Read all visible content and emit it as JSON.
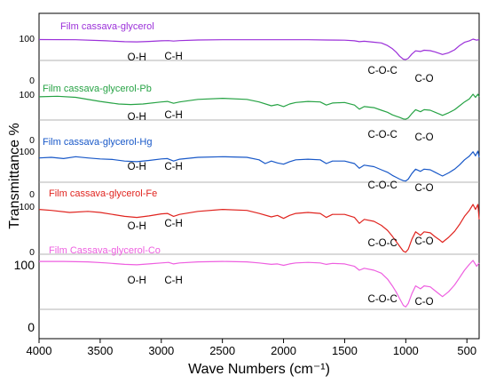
{
  "chart_data": {
    "type": "line",
    "title": "",
    "xlabel": "Wave Numbers (cm⁻¹)",
    "ylabel": "Transmittance %",
    "xlim": [
      4000,
      400
    ],
    "x_ticks": [
      4000,
      3500,
      3000,
      2500,
      2000,
      1500,
      1000,
      500
    ],
    "grid": false,
    "legend": "none",
    "series": [
      {
        "name": "Film cassava-glycerol",
        "color": "#9b30d9",
        "ref_top": "100",
        "ref_bottom": "0",
        "annotations": [
          {
            "text": "O-H",
            "x": 3200
          },
          {
            "text": "C-H",
            "x": 2900
          },
          {
            "text": "C-O-C",
            "x": 1190
          },
          {
            "text": "C-O",
            "x": 850
          }
        ],
        "points": [
          [
            4000,
            98
          ],
          [
            3700,
            97
          ],
          [
            3450,
            92
          ],
          [
            3300,
            88
          ],
          [
            3200,
            87
          ],
          [
            3100,
            89
          ],
          [
            3000,
            92
          ],
          [
            2940,
            93
          ],
          [
            2900,
            91
          ],
          [
            2850,
            93
          ],
          [
            2700,
            96
          ],
          [
            2500,
            97
          ],
          [
            2300,
            97
          ],
          [
            2100,
            97
          ],
          [
            2000,
            97
          ],
          [
            1800,
            97
          ],
          [
            1650,
            96
          ],
          [
            1500,
            95
          ],
          [
            1420,
            92
          ],
          [
            1380,
            88
          ],
          [
            1340,
            90
          ],
          [
            1250,
            85
          ],
          [
            1200,
            82
          ],
          [
            1150,
            70
          ],
          [
            1110,
            55
          ],
          [
            1080,
            40
          ],
          [
            1050,
            20
          ],
          [
            1020,
            6
          ],
          [
            1000,
            4
          ],
          [
            980,
            10
          ],
          [
            950,
            30
          ],
          [
            920,
            45
          ],
          [
            880,
            42
          ],
          [
            850,
            48
          ],
          [
            800,
            46
          ],
          [
            760,
            40
          ],
          [
            720,
            32
          ],
          [
            700,
            28
          ],
          [
            650,
            36
          ],
          [
            600,
            50
          ],
          [
            560,
            70
          ],
          [
            520,
            85
          ],
          [
            480,
            92
          ],
          [
            450,
            100
          ],
          [
            420,
            95
          ],
          [
            400,
            98
          ]
        ]
      },
      {
        "name": "Film cassava-glycerol-Pb",
        "color": "#27a345",
        "ref_top": "100",
        "ref_bottom": "0",
        "annotations": [
          {
            "text": "O-H",
            "x": 3200
          },
          {
            "text": "C-H",
            "x": 2900
          },
          {
            "text": "C-O-C",
            "x": 1190
          },
          {
            "text": "C-O",
            "x": 850
          }
        ],
        "points": [
          [
            4000,
            90
          ],
          [
            3850,
            92
          ],
          [
            3700,
            88
          ],
          [
            3500,
            72
          ],
          [
            3350,
            62
          ],
          [
            3250,
            60
          ],
          [
            3150,
            62
          ],
          [
            3000,
            70
          ],
          [
            2950,
            72
          ],
          [
            2900,
            65
          ],
          [
            2850,
            70
          ],
          [
            2700,
            80
          ],
          [
            2500,
            84
          ],
          [
            2300,
            80
          ],
          [
            2200,
            70
          ],
          [
            2100,
            55
          ],
          [
            2050,
            60
          ],
          [
            2000,
            52
          ],
          [
            1950,
            62
          ],
          [
            1900,
            68
          ],
          [
            1800,
            72
          ],
          [
            1700,
            70
          ],
          [
            1650,
            58
          ],
          [
            1600,
            66
          ],
          [
            1500,
            68
          ],
          [
            1420,
            58
          ],
          [
            1380,
            42
          ],
          [
            1340,
            52
          ],
          [
            1260,
            48
          ],
          [
            1200,
            38
          ],
          [
            1150,
            30
          ],
          [
            1110,
            20
          ],
          [
            1080,
            15
          ],
          [
            1050,
            10
          ],
          [
            1020,
            4
          ],
          [
            1000,
            3
          ],
          [
            980,
            8
          ],
          [
            950,
            25
          ],
          [
            920,
            40
          ],
          [
            880,
            32
          ],
          [
            850,
            40
          ],
          [
            800,
            38
          ],
          [
            760,
            30
          ],
          [
            720,
            22
          ],
          [
            700,
            18
          ],
          [
            650,
            28
          ],
          [
            600,
            40
          ],
          [
            560,
            55
          ],
          [
            520,
            70
          ],
          [
            480,
            82
          ],
          [
            450,
            100
          ],
          [
            430,
            88
          ],
          [
            410,
            100
          ],
          [
            400,
            90
          ]
        ]
      },
      {
        "name": "Film cassava-glycerol-Hg",
        "color": "#1858c8",
        "ref_top": "100",
        "ref_bottom": "0",
        "annotations": [
          {
            "text": "O-H",
            "x": 3200
          },
          {
            "text": "C-H",
            "x": 2900
          },
          {
            "text": "C-O-C",
            "x": 1190
          },
          {
            "text": "C-O",
            "x": 850
          }
        ],
        "points": [
          [
            4000,
            78
          ],
          [
            3900,
            80
          ],
          [
            3800,
            76
          ],
          [
            3700,
            82
          ],
          [
            3600,
            78
          ],
          [
            3500,
            75
          ],
          [
            3400,
            73
          ],
          [
            3300,
            68
          ],
          [
            3200,
            66
          ],
          [
            3100,
            70
          ],
          [
            3000,
            75
          ],
          [
            2950,
            76
          ],
          [
            2900,
            68
          ],
          [
            2850,
            74
          ],
          [
            2700,
            80
          ],
          [
            2500,
            82
          ],
          [
            2300,
            80
          ],
          [
            2200,
            72
          ],
          [
            2150,
            60
          ],
          [
            2100,
            68
          ],
          [
            2050,
            62
          ],
          [
            2000,
            58
          ],
          [
            1950,
            66
          ],
          [
            1900,
            72
          ],
          [
            1800,
            74
          ],
          [
            1700,
            72
          ],
          [
            1650,
            60
          ],
          [
            1600,
            68
          ],
          [
            1500,
            68
          ],
          [
            1420,
            60
          ],
          [
            1380,
            45
          ],
          [
            1340,
            55
          ],
          [
            1260,
            50
          ],
          [
            1200,
            40
          ],
          [
            1150,
            32
          ],
          [
            1110,
            22
          ],
          [
            1080,
            16
          ],
          [
            1050,
            10
          ],
          [
            1020,
            5
          ],
          [
            1000,
            4
          ],
          [
            980,
            10
          ],
          [
            950,
            28
          ],
          [
            920,
            42
          ],
          [
            880,
            35
          ],
          [
            850,
            42
          ],
          [
            800,
            40
          ],
          [
            760,
            32
          ],
          [
            720,
            24
          ],
          [
            700,
            20
          ],
          [
            650,
            30
          ],
          [
            600,
            42
          ],
          [
            560,
            56
          ],
          [
            520,
            72
          ],
          [
            480,
            84
          ],
          [
            450,
            98
          ],
          [
            430,
            85
          ],
          [
            410,
            100
          ],
          [
            400,
            80
          ]
        ]
      },
      {
        "name": "Film cassava-glycerol-Fe",
        "color": "#e0241f",
        "ref_top": "100",
        "ref_bottom": "0",
        "annotations": [
          {
            "text": "O-H",
            "x": 3200
          },
          {
            "text": "C-H",
            "x": 2900
          },
          {
            "text": "C-O-C",
            "x": 1190
          },
          {
            "text": "C-O",
            "x": 850
          }
        ],
        "points": [
          [
            4000,
            90
          ],
          [
            3900,
            88
          ],
          [
            3750,
            84
          ],
          [
            3600,
            86
          ],
          [
            3500,
            84
          ],
          [
            3400,
            80
          ],
          [
            3300,
            76
          ],
          [
            3200,
            74
          ],
          [
            3100,
            77
          ],
          [
            3000,
            81
          ],
          [
            2950,
            82
          ],
          [
            2900,
            76
          ],
          [
            2850,
            80
          ],
          [
            2700,
            86
          ],
          [
            2500,
            90
          ],
          [
            2300,
            88
          ],
          [
            2200,
            82
          ],
          [
            2100,
            75
          ],
          [
            2050,
            78
          ],
          [
            2000,
            72
          ],
          [
            1950,
            78
          ],
          [
            1900,
            82
          ],
          [
            1800,
            84
          ],
          [
            1700,
            82
          ],
          [
            1650,
            74
          ],
          [
            1600,
            80
          ],
          [
            1500,
            80
          ],
          [
            1420,
            74
          ],
          [
            1380,
            62
          ],
          [
            1340,
            70
          ],
          [
            1260,
            66
          ],
          [
            1200,
            58
          ],
          [
            1150,
            48
          ],
          [
            1110,
            36
          ],
          [
            1080,
            26
          ],
          [
            1050,
            16
          ],
          [
            1020,
            6
          ],
          [
            1000,
            4
          ],
          [
            980,
            10
          ],
          [
            950,
            30
          ],
          [
            920,
            45
          ],
          [
            880,
            38
          ],
          [
            850,
            45
          ],
          [
            800,
            43
          ],
          [
            760,
            35
          ],
          [
            720,
            28
          ],
          [
            700,
            24
          ],
          [
            650,
            34
          ],
          [
            600,
            46
          ],
          [
            560,
            60
          ],
          [
            520,
            76
          ],
          [
            480,
            88
          ],
          [
            450,
            100
          ],
          [
            430,
            90
          ],
          [
            410,
            100
          ],
          [
            400,
            70
          ]
        ]
      },
      {
        "name": "Film Cassava-glycerol-Co",
        "color": "#ee5fe0",
        "ref_top": "100",
        "ref_bottom": "0",
        "annotations": [
          {
            "text": "O-H",
            "x": 3200
          },
          {
            "text": "C-H",
            "x": 2900
          },
          {
            "text": "C-O-C",
            "x": 1190
          },
          {
            "text": "C-O",
            "x": 850
          }
        ],
        "points": [
          [
            4000,
            98
          ],
          [
            3800,
            98
          ],
          [
            3600,
            97
          ],
          [
            3450,
            95
          ],
          [
            3300,
            92
          ],
          [
            3200,
            91
          ],
          [
            3100,
            93
          ],
          [
            3000,
            95
          ],
          [
            2940,
            96
          ],
          [
            2900,
            93
          ],
          [
            2850,
            95
          ],
          [
            2700,
            97
          ],
          [
            2500,
            98
          ],
          [
            2300,
            97
          ],
          [
            2200,
            95
          ],
          [
            2100,
            92
          ],
          [
            2050,
            93
          ],
          [
            2000,
            90
          ],
          [
            1950,
            93
          ],
          [
            1900,
            95
          ],
          [
            1800,
            96
          ],
          [
            1700,
            95
          ],
          [
            1650,
            92
          ],
          [
            1600,
            94
          ],
          [
            1500,
            93
          ],
          [
            1420,
            88
          ],
          [
            1380,
            80
          ],
          [
            1340,
            84
          ],
          [
            1260,
            80
          ],
          [
            1200,
            74
          ],
          [
            1150,
            62
          ],
          [
            1110,
            48
          ],
          [
            1080,
            36
          ],
          [
            1050,
            22
          ],
          [
            1020,
            8
          ],
          [
            1000,
            5
          ],
          [
            980,
            12
          ],
          [
            950,
            32
          ],
          [
            920,
            48
          ],
          [
            880,
            42
          ],
          [
            850,
            48
          ],
          [
            800,
            46
          ],
          [
            760,
            38
          ],
          [
            720,
            30
          ],
          [
            700,
            26
          ],
          [
            650,
            36
          ],
          [
            600,
            50
          ],
          [
            560,
            65
          ],
          [
            520,
            80
          ],
          [
            480,
            92
          ],
          [
            450,
            100
          ],
          [
            420,
            88
          ],
          [
            400,
            95
          ]
        ]
      }
    ]
  }
}
